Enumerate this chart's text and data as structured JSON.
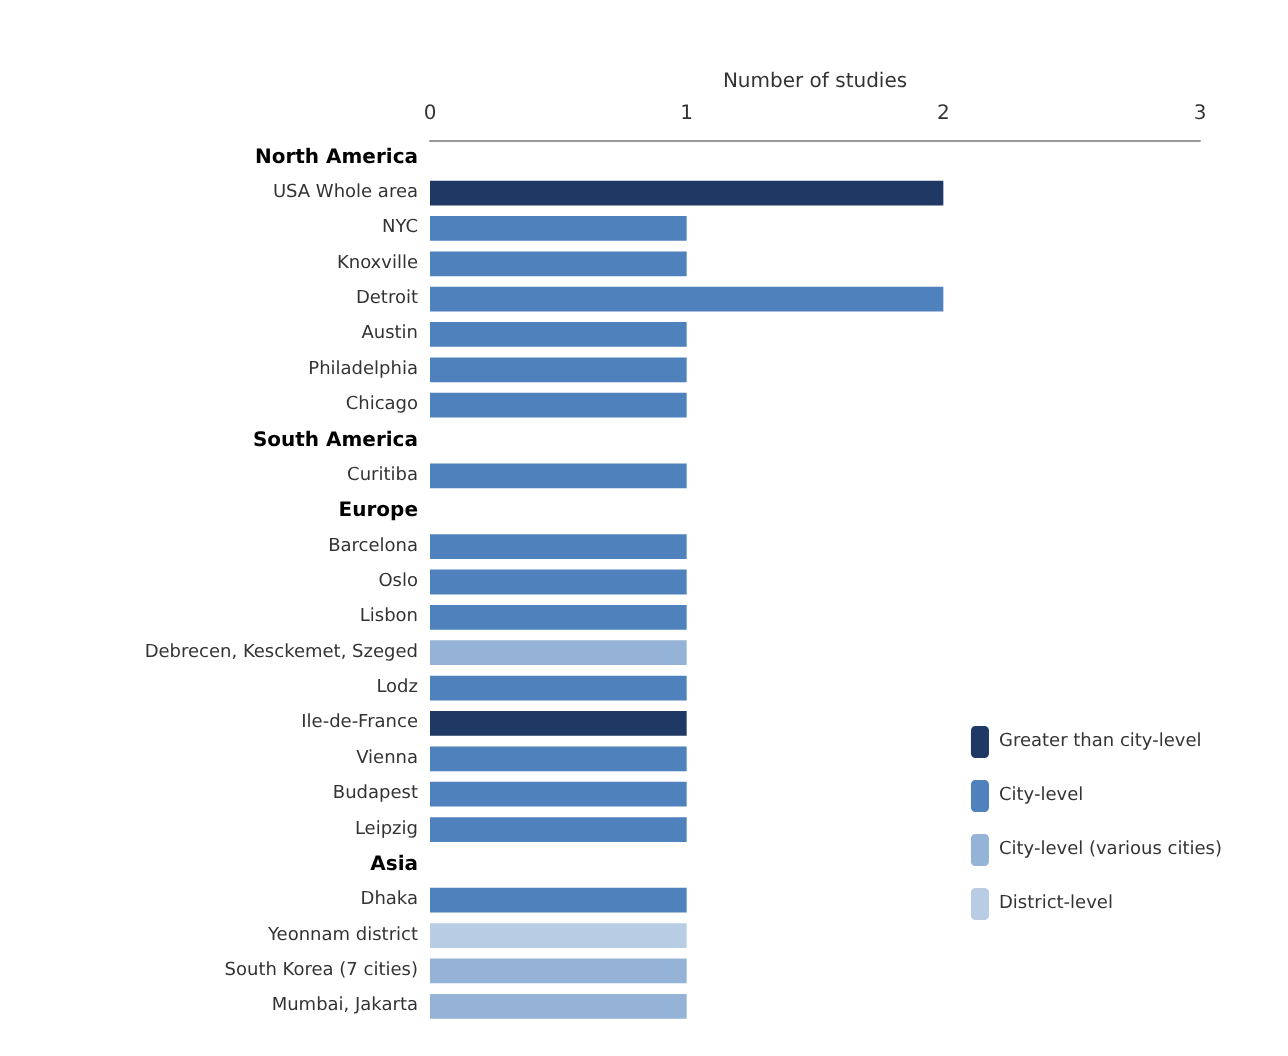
{
  "chart_data": {
    "type": "bar",
    "orientation": "horizontal",
    "stacked": true,
    "xlabel": "Number of studies",
    "xlim": [
      0,
      3
    ],
    "xticks": [
      0,
      1,
      2,
      3
    ],
    "grid": false,
    "legend": "bottom right",
    "categories": [
      "North America",
      "USA Whole area",
      "NYC",
      "Knoxville",
      "Detroit",
      "Austin",
      "Philadelphia",
      "Chicago",
      "South America",
      "Curitiba",
      "Europe",
      "Barcelona",
      "Oslo",
      "Lisbon",
      "Debrecen, Kesckemet, Szeged",
      "Lodz",
      "Ile-de-France",
      "Vienna",
      "Budapest",
      "Leipzig",
      "Asia",
      "Dhaka",
      "Yeonnam district",
      "South Korea (7 cities)",
      "Mumbai, Jakarta"
    ],
    "series": [
      {
        "name": "Greater than city-level",
        "color": "#1f3864",
        "values": [
          null,
          2,
          null,
          null,
          null,
          null,
          null,
          null,
          null,
          null,
          null,
          null,
          null,
          null,
          null,
          null,
          1,
          null,
          null,
          null,
          null,
          null,
          null,
          null,
          null
        ]
      },
      {
        "name": "City-level",
        "color": "#4f81bd",
        "values": [
          null,
          null,
          1,
          1,
          2,
          1,
          1,
          1,
          null,
          1,
          null,
          1,
          1,
          1,
          null,
          1,
          null,
          1,
          1,
          1,
          null,
          1,
          null,
          null,
          null
        ]
      },
      {
        "name": "City-level (various cities)",
        "color": "#95b3d7",
        "values": [
          null,
          null,
          null,
          null,
          null,
          null,
          null,
          null,
          null,
          null,
          null,
          null,
          null,
          null,
          1,
          null,
          null,
          null,
          null,
          null,
          null,
          null,
          null,
          1,
          1
        ]
      },
      {
        "name": "District-level",
        "color": "#b8cce4",
        "values": [
          null,
          null,
          null,
          null,
          null,
          null,
          null,
          null,
          null,
          null,
          null,
          null,
          null,
          null,
          null,
          null,
          null,
          null,
          null,
          null,
          null,
          null,
          1,
          null,
          null
        ]
      }
    ]
  }
}
